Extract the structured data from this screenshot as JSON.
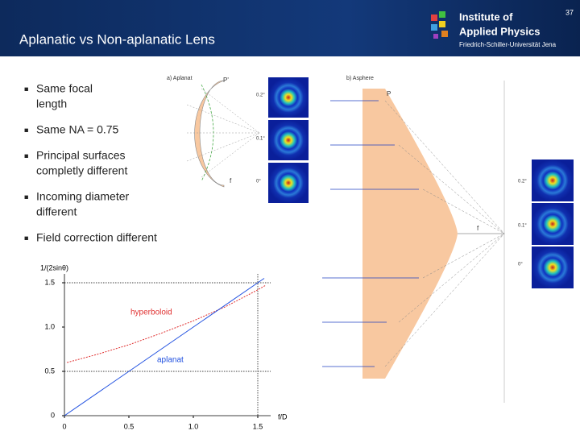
{
  "header": {
    "title": "Aplanatic vs Non-aplanatic Lens",
    "page_number": "37",
    "logo": [
      "Institute of",
      "Applied Physics",
      "Friedrich-Schiller-Universität Jena"
    ]
  },
  "bullets": [
    [
      "Same focal",
      "length"
    ],
    [
      "Same NA = 0.75"
    ],
    [
      "Principal surfaces",
      "completly different"
    ],
    [
      "Incoming diameter",
      "different"
    ],
    [
      "Field correction different"
    ]
  ],
  "diagram_a": {
    "title": "a) Aplanat",
    "point": "P'",
    "focal": "f",
    "fields": [
      "0.2°",
      "0.1°",
      "0°"
    ]
  },
  "diagram_b": {
    "title": "b) Asphere",
    "point": "P",
    "focal": "f",
    "fields": [
      "0.2°",
      "0.1°",
      "0°"
    ]
  },
  "chart_data": {
    "type": "line",
    "y_label": "1/(2sinθ)",
    "x_label": "f/D",
    "xlim": [
      0,
      1.6
    ],
    "ylim": [
      0,
      1.6
    ],
    "xticks": [
      0,
      0.5,
      {
        "value": 1,
        "label": "1.0"
      },
      1.5
    ],
    "yticks": [
      0,
      0.5,
      {
        "value": 1,
        "label": "1.0"
      },
      1.5
    ],
    "ref_lines_y": [
      0.5,
      1.5
    ],
    "ref_lines_x": [
      1.5
    ],
    "series": [
      {
        "name": "hyperboloid",
        "color": "#e03030",
        "x": [
          0.02,
          0.25,
          0.5,
          0.75,
          1.0,
          1.25,
          1.5,
          1.56
        ],
        "values": [
          0.6,
          0.69,
          0.8,
          0.93,
          1.07,
          1.23,
          1.42,
          1.47
        ]
      },
      {
        "name": "aplanat",
        "color": "#2050e0",
        "x": [
          0,
          1.55
        ],
        "values": [
          0,
          1.55
        ]
      }
    ]
  }
}
